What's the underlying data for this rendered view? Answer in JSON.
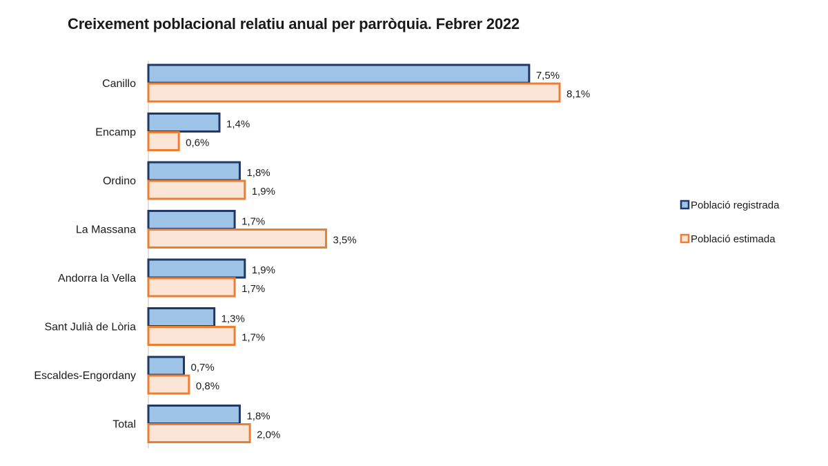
{
  "chart_data": {
    "type": "bar",
    "orientation": "horizontal",
    "title": "Creixement poblacional relatiu anual per parròquia. Febrer 2022",
    "categories": [
      "Canillo",
      "Encamp",
      "Ordino",
      "La Massana",
      "Andorra la Vella",
      "Sant Julià de Lòria",
      "Escaldes-Engordany",
      "Total"
    ],
    "series": [
      {
        "name": "Població registrada",
        "values": [
          7.5,
          1.4,
          1.8,
          1.7,
          1.9,
          1.3,
          0.7,
          1.8
        ],
        "labels": [
          "7,5%",
          "1,4%",
          "1,8%",
          "1,7%",
          "1,9%",
          "1,3%",
          "0,7%",
          "1,8%"
        ],
        "fill": "#9dc3e6",
        "stroke": "#1f3864"
      },
      {
        "name": "Població estimada",
        "values": [
          8.1,
          0.6,
          1.9,
          3.5,
          1.7,
          1.7,
          0.8,
          2.0
        ],
        "labels": [
          "8,1%",
          "0,6%",
          "1,9%",
          "3,5%",
          "1,7%",
          "1,7%",
          "0,8%",
          "2,0%"
        ],
        "fill": "#fbe5d6",
        "stroke": "#ed7d31"
      }
    ],
    "xlim": [
      0,
      8.1
    ],
    "grid": false,
    "legend_position": "right"
  }
}
